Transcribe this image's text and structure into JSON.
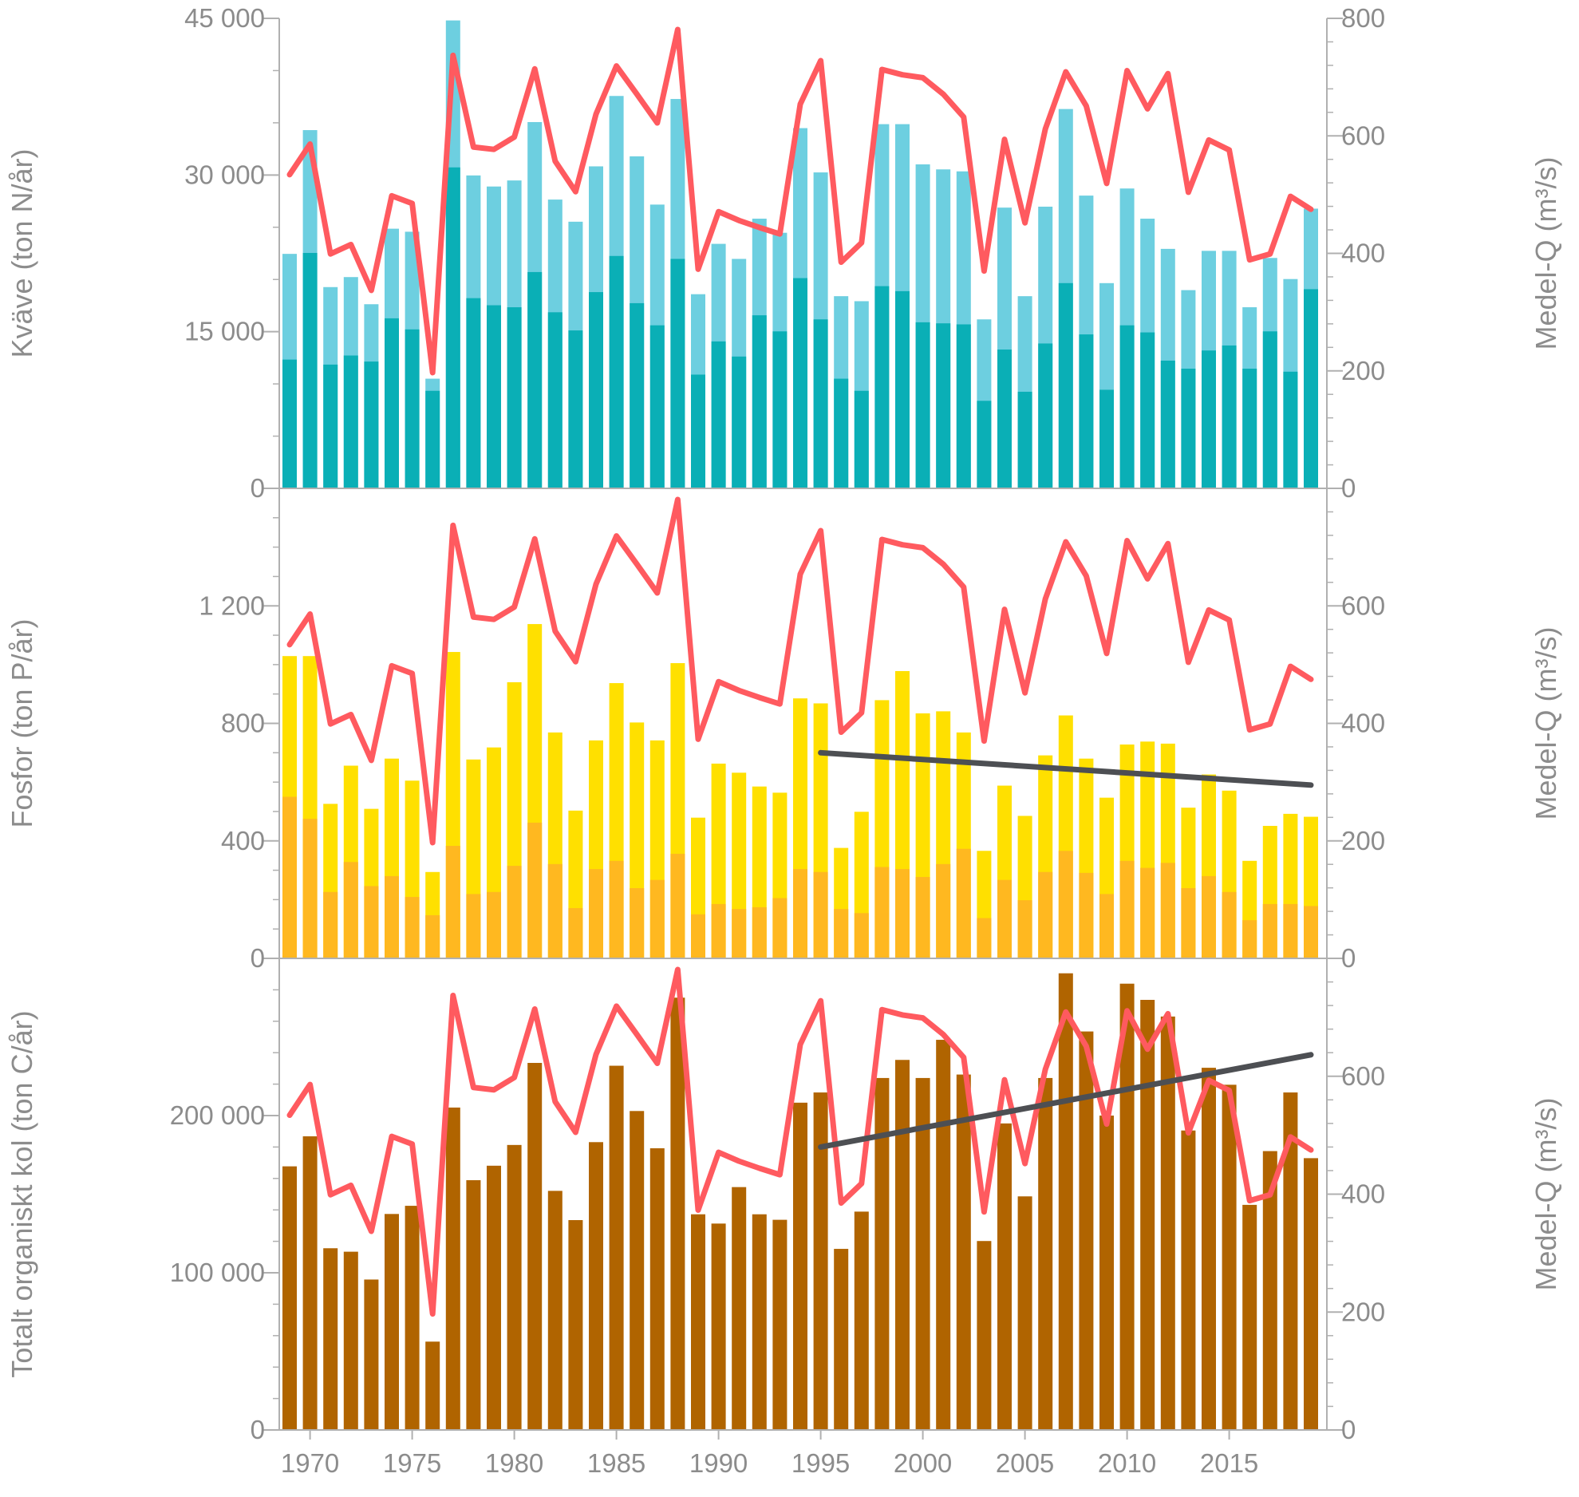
{
  "chart_data": [
    {
      "type": "bar",
      "stacked": true,
      "panel": "top",
      "ylabel": "Kväve (ton N/år)",
      "y2label": "Medel-Q (m³/s)",
      "ylim": [
        0,
        45000
      ],
      "y2lim": [
        0,
        800
      ],
      "yticks": [
        "0",
        "15 000",
        "30 000",
        "45 000"
      ],
      "ytick_values": [
        0,
        15000,
        30000,
        45000
      ],
      "y2ticks": [
        "0",
        "200",
        "400",
        "600",
        "800"
      ],
      "y2tick_values": [
        0,
        200,
        400,
        600,
        800
      ],
      "colors": {
        "total": "#6dcfe0",
        "lower": "#0aafb6",
        "flow": "#ff5a5f"
      },
      "total": [
        22450,
        34300,
        19270,
        20230,
        17630,
        24860,
        24570,
        10500,
        44800,
        29960,
        28900,
        29480,
        35070,
        27650,
        25530,
        30830,
        37570,
        31790,
        27170,
        37280,
        18590,
        23410,
        21970,
        25820,
        24470,
        34490,
        30250,
        18400,
        17920,
        34870,
        34870,
        31020,
        30540,
        30350,
        16180,
        26880,
        18400,
        26970,
        36320,
        28030,
        19650,
        28710,
        25820,
        22930,
        18980,
        22740,
        22740,
        17340,
        22060,
        20040,
        26780
      ],
      "lower": [
        12330,
        22540,
        11850,
        12720,
        12140,
        16280,
        15220,
        9340,
        30730,
        18210,
        17530,
        17340,
        20710,
        16860,
        15120,
        18790,
        22250,
        17730,
        15610,
        21970,
        10890,
        14070,
        12620,
        16570,
        15030,
        20130,
        16180,
        10500,
        9340,
        19360,
        18880,
        15900,
        15800,
        15700,
        8380,
        13290,
        9250,
        13870,
        19650,
        14740,
        9440,
        15610,
        14930,
        12230,
        11460,
        13200,
        13680,
        11460,
        15030,
        11170,
        19070
      ]
    },
    {
      "type": "bar",
      "stacked": true,
      "panel": "middle",
      "ylabel": "Fosfor (ton P/år)",
      "y2label": "Medel-Q (m³/s)",
      "ylim": [
        0,
        1600
      ],
      "y2lim": [
        0,
        800
      ],
      "yticks": [
        "0",
        "400",
        "800",
        "1 200"
      ],
      "ytick_values": [
        0,
        400,
        800,
        1200
      ],
      "y2ticks": [
        "0",
        "200",
        "400",
        "600"
      ],
      "y2tick_values": [
        0,
        200,
        400,
        600
      ],
      "colors": {
        "total": "#ffe000",
        "lower": "#ffb820",
        "flow": "#ff5a5f",
        "trend": "#4d4f53"
      },
      "total": [
        1029,
        1029,
        526,
        656,
        509,
        680,
        605,
        294,
        1043,
        677,
        718,
        940,
        1138,
        769,
        503,
        742,
        937,
        803,
        742,
        1005,
        479,
        663,
        632,
        585,
        564,
        885,
        868,
        376,
        499,
        879,
        978,
        834,
        841,
        769,
        366,
        588,
        485,
        691,
        827,
        680,
        547,
        728,
        738,
        731,
        513,
        626,
        571,
        332,
        451,
        492,
        482
      ],
      "lower": [
        550,
        475,
        226,
        328,
        246,
        280,
        209,
        147,
        383,
        219,
        226,
        315,
        462,
        321,
        171,
        304,
        332,
        239,
        267,
        356,
        150,
        185,
        168,
        174,
        205,
        304,
        294,
        168,
        154,
        311,
        304,
        277,
        321,
        373,
        137,
        267,
        198,
        294,
        366,
        291,
        219,
        332,
        308,
        325,
        239,
        280,
        226,
        130,
        185,
        185,
        178
      ],
      "trend": {
        "x": [
          1995,
          2019
        ],
        "y": [
          700,
          590
        ]
      }
    },
    {
      "type": "bar",
      "panel": "bottom",
      "ylabel": "Totalt organiskt kol (ton C/år)",
      "y2label": "Medel-Q (m³/s)",
      "ylim": [
        0,
        300000
      ],
      "y2lim": [
        0,
        800
      ],
      "yticks": [
        "0",
        "100 000",
        "200 000"
      ],
      "ytick_values": [
        0,
        100000,
        200000
      ],
      "y2ticks": [
        "0",
        "200",
        "400",
        "600"
      ],
      "y2tick_values": [
        0,
        200,
        400,
        600
      ],
      "colors": {
        "bar": "#b06400",
        "flow": "#ff5a5f",
        "trend": "#4d4f53"
      },
      "values": [
        167700,
        186800,
        115600,
        113400,
        95700,
        137400,
        142600,
        56200,
        205100,
        158900,
        168100,
        181300,
        233500,
        152100,
        133500,
        183100,
        231700,
        202900,
        179200,
        275000,
        137200,
        131300,
        154500,
        137200,
        133700,
        208200,
        214700,
        115200,
        138900,
        223900,
        235400,
        223900,
        248200,
        226100,
        120200,
        195000,
        148600,
        223900,
        290500,
        253500,
        200000,
        283900,
        273600,
        263000,
        190500,
        230400,
        219600,
        143200,
        177400,
        214700,
        172900
      ],
      "trend": {
        "x": [
          1995,
          2019
        ],
        "y": [
          180000,
          238700
        ]
      }
    }
  ],
  "shared": {
    "years": [
      1969,
      1970,
      1971,
      1972,
      1973,
      1974,
      1975,
      1976,
      1977,
      1978,
      1979,
      1980,
      1981,
      1982,
      1983,
      1984,
      1985,
      1986,
      1987,
      1988,
      1989,
      1990,
      1991,
      1992,
      1993,
      1994,
      1995,
      1996,
      1997,
      1998,
      1999,
      2000,
      2001,
      2002,
      2003,
      2004,
      2005,
      2006,
      2007,
      2008,
      2009,
      2010,
      2011,
      2012,
      2013,
      2014,
      2015,
      2016,
      2017,
      2018,
      2019
    ],
    "xticks": [
      "1970",
      "1975",
      "1980",
      "1985",
      "1990",
      "1995",
      "2000",
      "2005",
      "2010",
      "2015"
    ],
    "xtick_values": [
      1970,
      1975,
      1980,
      1985,
      1990,
      1995,
      2000,
      2005,
      2010,
      2015
    ],
    "flow": [
      534,
      586,
      399,
      415,
      337,
      498,
      485,
      197,
      737,
      581,
      577,
      598,
      714,
      557,
      505,
      637,
      719,
      671,
      622,
      781,
      373,
      471,
      456,
      444,
      433,
      654,
      728,
      385,
      418,
      713,
      704,
      699,
      671,
      632,
      370,
      594,
      452,
      612,
      709,
      651,
      519,
      711,
      646,
      706,
      504,
      593,
      576,
      389,
      399,
      497,
      475
    ]
  }
}
